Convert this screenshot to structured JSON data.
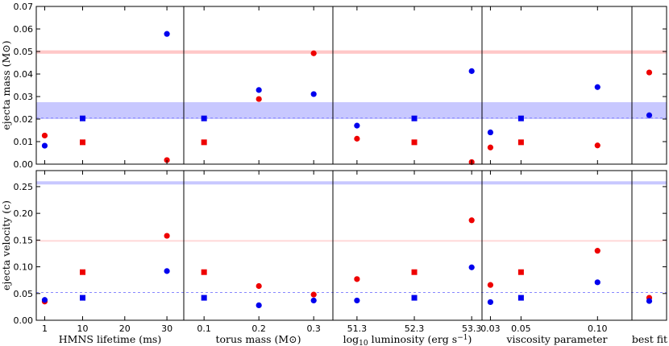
{
  "chart_data": {
    "type": "scatter",
    "y_labels": {
      "top": "ejecta mass (M⊙)",
      "bottom": "ejecta velocity (c)"
    },
    "rows": {
      "top": {
        "ylim": [
          0,
          0.07
        ],
        "yticks": [
          "0.00",
          "0.01",
          "0.02",
          "0.03",
          "0.04",
          "0.05",
          "0.06",
          "0.07"
        ],
        "bands": [
          {
            "color": "#ffc8c8",
            "range": [
              0.049,
              0.0505
            ]
          },
          {
            "color": "#c8c8ff",
            "range": [
              0.02,
              0.0275
            ]
          }
        ],
        "dashed": {
          "color": "#8888ff",
          "value": 0.0205
        }
      },
      "bottom": {
        "ylim": [
          0,
          0.28
        ],
        "yticks": [
          "0.00",
          "0.05",
          "0.10",
          "0.15",
          "0.20",
          "0.25"
        ],
        "bands": [
          {
            "color": "#ffd8d8",
            "range": [
              0.147,
              0.15
            ]
          },
          {
            "color": "#c8c8ff",
            "range": [
              0.254,
              0.26
            ]
          }
        ],
        "dashed": {
          "color": "#8888ff",
          "value": 0.052
        }
      }
    },
    "panels": [
      {
        "xlabel": "HMNS lifetime (ms)",
        "xticks": [
          {
            "v": 1,
            "t": "1"
          },
          {
            "v": 10,
            "t": "10"
          },
          {
            "v": 20,
            "t": "20"
          },
          {
            "v": 30,
            "t": "30"
          }
        ],
        "xlim": [
          -1,
          34
        ],
        "mass": [
          {
            "x": 1,
            "y": 0.0127,
            "c": "red",
            "m": "circle"
          },
          {
            "x": 1,
            "y": 0.0082,
            "c": "blue",
            "m": "circle"
          },
          {
            "x": 10,
            "y": 0.0203,
            "c": "blue",
            "m": "square"
          },
          {
            "x": 10,
            "y": 0.0097,
            "c": "red",
            "m": "square"
          },
          {
            "x": 30,
            "y": 0.0578,
            "c": "blue",
            "m": "circle"
          },
          {
            "x": 30,
            "y": 0.0018,
            "c": "red",
            "m": "circle"
          }
        ],
        "velocity": [
          {
            "x": 1,
            "y": 0.035,
            "c": "red",
            "m": "circle"
          },
          {
            "x": 1,
            "y": 0.038,
            "c": "blue",
            "m": "circle"
          },
          {
            "x": 10,
            "y": 0.09,
            "c": "red",
            "m": "square"
          },
          {
            "x": 10,
            "y": 0.042,
            "c": "blue",
            "m": "square"
          },
          {
            "x": 30,
            "y": 0.158,
            "c": "red",
            "m": "circle"
          },
          {
            "x": 30,
            "y": 0.092,
            "c": "blue",
            "m": "circle"
          }
        ]
      },
      {
        "xlabel": "torus mass (M⊙)",
        "xticks": [
          {
            "v": 0.1,
            "t": "0.1"
          },
          {
            "v": 0.2,
            "t": "0.2"
          },
          {
            "v": 0.3,
            "t": "0.3"
          }
        ],
        "xlim": [
          0.063,
          0.335
        ],
        "mass": [
          {
            "x": 0.1,
            "y": 0.0203,
            "c": "blue",
            "m": "square"
          },
          {
            "x": 0.1,
            "y": 0.0097,
            "c": "red",
            "m": "square"
          },
          {
            "x": 0.2,
            "y": 0.0329,
            "c": "blue",
            "m": "circle"
          },
          {
            "x": 0.2,
            "y": 0.0289,
            "c": "red",
            "m": "circle"
          },
          {
            "x": 0.3,
            "y": 0.0492,
            "c": "red",
            "m": "circle"
          },
          {
            "x": 0.3,
            "y": 0.0311,
            "c": "blue",
            "m": "circle"
          }
        ],
        "velocity": [
          {
            "x": 0.1,
            "y": 0.09,
            "c": "red",
            "m": "square"
          },
          {
            "x": 0.1,
            "y": 0.042,
            "c": "blue",
            "m": "square"
          },
          {
            "x": 0.2,
            "y": 0.064,
            "c": "red",
            "m": "circle"
          },
          {
            "x": 0.2,
            "y": 0.028,
            "c": "blue",
            "m": "circle"
          },
          {
            "x": 0.3,
            "y": 0.048,
            "c": "red",
            "m": "circle"
          },
          {
            "x": 0.3,
            "y": 0.037,
            "c": "blue",
            "m": "circle"
          }
        ]
      },
      {
        "xlabel": "log₁₀ luminosity (erg s⁻¹)",
        "xticks": [
          {
            "v": 51.3,
            "t": "51.3"
          },
          {
            "v": 52.3,
            "t": "52.3"
          },
          {
            "v": 53.3,
            "t": "53.3"
          }
        ],
        "xlim": [
          50.88,
          53.48
        ],
        "mass": [
          {
            "x": 51.3,
            "y": 0.0171,
            "c": "blue",
            "m": "circle"
          },
          {
            "x": 51.3,
            "y": 0.0113,
            "c": "red",
            "m": "circle"
          },
          {
            "x": 52.3,
            "y": 0.0203,
            "c": "blue",
            "m": "square"
          },
          {
            "x": 52.3,
            "y": 0.0097,
            "c": "red",
            "m": "square"
          },
          {
            "x": 53.3,
            "y": 0.0413,
            "c": "blue",
            "m": "circle"
          },
          {
            "x": 53.3,
            "y": 0.0009,
            "c": "red",
            "m": "circle"
          }
        ],
        "velocity": [
          {
            "x": 51.3,
            "y": 0.077,
            "c": "red",
            "m": "circle"
          },
          {
            "x": 51.3,
            "y": 0.037,
            "c": "blue",
            "m": "circle"
          },
          {
            "x": 52.3,
            "y": 0.09,
            "c": "red",
            "m": "square"
          },
          {
            "x": 52.3,
            "y": 0.042,
            "c": "blue",
            "m": "square"
          },
          {
            "x": 53.3,
            "y": 0.187,
            "c": "red",
            "m": "circle"
          },
          {
            "x": 53.3,
            "y": 0.099,
            "c": "blue",
            "m": "circle"
          }
        ]
      },
      {
        "xlabel": "viscosity parameter",
        "xticks": [
          {
            "v": 0.03,
            "t": "0.03"
          },
          {
            "v": 0.05,
            "t": "0.05"
          },
          {
            "v": 0.1,
            "t": "0.10"
          }
        ],
        "xlim": [
          0.0245,
          0.1225
        ],
        "mass": [
          {
            "x": 0.03,
            "y": 0.0141,
            "c": "blue",
            "m": "circle"
          },
          {
            "x": 0.03,
            "y": 0.0074,
            "c": "red",
            "m": "circle"
          },
          {
            "x": 0.05,
            "y": 0.0203,
            "c": "blue",
            "m": "square"
          },
          {
            "x": 0.05,
            "y": 0.0097,
            "c": "red",
            "m": "square"
          },
          {
            "x": 0.1,
            "y": 0.0342,
            "c": "blue",
            "m": "circle"
          },
          {
            "x": 0.1,
            "y": 0.0083,
            "c": "red",
            "m": "circle"
          }
        ],
        "velocity": [
          {
            "x": 0.03,
            "y": 0.066,
            "c": "red",
            "m": "circle"
          },
          {
            "x": 0.03,
            "y": 0.034,
            "c": "blue",
            "m": "circle"
          },
          {
            "x": 0.05,
            "y": 0.09,
            "c": "red",
            "m": "square"
          },
          {
            "x": 0.05,
            "y": 0.042,
            "c": "blue",
            "m": "square"
          },
          {
            "x": 0.1,
            "y": 0.13,
            "c": "red",
            "m": "circle"
          },
          {
            "x": 0.1,
            "y": 0.071,
            "c": "blue",
            "m": "circle"
          }
        ]
      },
      {
        "xlabel": "best fit",
        "xticks": [],
        "xlim": [
          0,
          1
        ],
        "mass": [
          {
            "x": 0.5,
            "y": 0.0407,
            "c": "red",
            "m": "circle"
          },
          {
            "x": 0.5,
            "y": 0.0217,
            "c": "blue",
            "m": "circle"
          }
        ],
        "velocity": [
          {
            "x": 0.5,
            "y": 0.042,
            "c": "red",
            "m": "circle"
          },
          {
            "x": 0.5,
            "y": 0.036,
            "c": "blue",
            "m": "circle"
          }
        ]
      }
    ],
    "colors": {
      "red": "#ee0000",
      "blue": "#0000ee"
    },
    "grid": false,
    "legend": "none"
  }
}
